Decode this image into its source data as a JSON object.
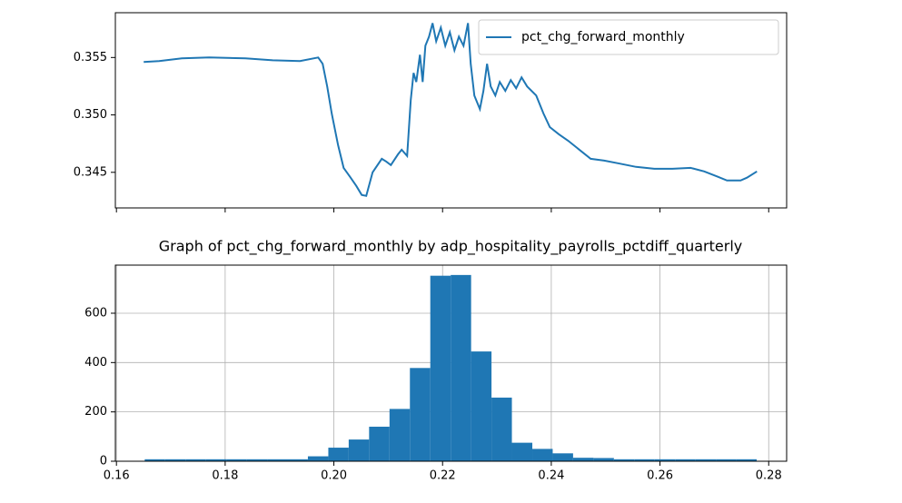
{
  "chart_data": [
    {
      "type": "line",
      "x": [
        0.16501,
        0.16786,
        0.17203,
        0.17705,
        0.18373,
        0.18875,
        0.19376,
        0.19711,
        0.19794,
        0.19878,
        0.19961,
        0.20078,
        0.20179,
        0.20296,
        0.20412,
        0.20513,
        0.20596,
        0.20713,
        0.20881,
        0.20964,
        0.21048,
        0.21181,
        0.21248,
        0.21348,
        0.21415,
        0.21466,
        0.21516,
        0.21583,
        0.21633,
        0.21683,
        0.2175,
        0.21816,
        0.21883,
        0.21967,
        0.2205,
        0.22134,
        0.22218,
        0.22301,
        0.22385,
        0.22468,
        0.22518,
        0.22585,
        0.22686,
        0.22752,
        0.22819,
        0.22886,
        0.2297,
        0.23053,
        0.23154,
        0.23254,
        0.23354,
        0.23454,
        0.23555,
        0.23722,
        0.23856,
        0.23973,
        0.2414,
        0.24307,
        0.24474,
        0.24725,
        0.24975,
        0.25226,
        0.2556,
        0.25895,
        0.26229,
        0.26563,
        0.26814,
        0.27065,
        0.27232,
        0.27483,
        0.276,
        0.27784
      ],
      "series": [
        {
          "name": "pct_chg_forward_monthly",
          "color": "#1f77b4",
          "values": [
            0.35461,
            0.35469,
            0.35492,
            0.355,
            0.35492,
            0.35476,
            0.35469,
            0.355,
            0.35445,
            0.35248,
            0.35012,
            0.34736,
            0.34539,
            0.34461,
            0.34382,
            0.34303,
            0.34295,
            0.345,
            0.34618,
            0.34594,
            0.34563,
            0.34657,
            0.34697,
            0.34642,
            0.3513,
            0.35366,
            0.35287,
            0.35524,
            0.35287,
            0.35602,
            0.35681,
            0.35799,
            0.35642,
            0.3576,
            0.35602,
            0.3572,
            0.35563,
            0.35681,
            0.35602,
            0.35799,
            0.35445,
            0.35169,
            0.35051,
            0.35209,
            0.35445,
            0.35248,
            0.35169,
            0.35287,
            0.35209,
            0.35303,
            0.35232,
            0.35327,
            0.35248,
            0.35169,
            0.35012,
            0.34894,
            0.34831,
            0.34776,
            0.34713,
            0.34618,
            0.34602,
            0.34579,
            0.34547,
            0.34531,
            0.34531,
            0.34539,
            0.34508,
            0.34461,
            0.34429,
            0.34429,
            0.34453,
            0.34508
          ]
        }
      ],
      "xlim": [
        0.1598,
        0.2833
      ],
      "xticks": [
        0.16,
        0.18,
        0.2,
        0.22,
        0.24,
        0.26,
        0.28
      ],
      "xtick_labels": false,
      "ylim": [
        0.3419,
        0.3589
      ],
      "yticks": [
        0.345,
        {
          "value": 0.35,
          "label": "0.350"
        },
        0.355
      ],
      "grid": false,
      "legend": "upper right"
    },
    {
      "type": "histogram",
      "title": "Graph of pct_chg_forward_monthly by adp_hospitality_payrolls_pctdiff_quarterly",
      "bins": [
        0.1652,
        0.16895,
        0.17271,
        0.17646,
        0.18021,
        0.18397,
        0.18772,
        0.19147,
        0.19522,
        0.19898,
        0.20273,
        0.20648,
        0.21024,
        0.21399,
        0.21774,
        0.2215,
        0.22525,
        0.229,
        0.23275,
        0.23651,
        0.24026,
        0.24401,
        0.24777,
        0.25152,
        0.25527,
        0.25903,
        0.26278,
        0.26653,
        0.27028,
        0.27404,
        0.27779
      ],
      "values": [
        8,
        8,
        8,
        8,
        8,
        8,
        8,
        8,
        20,
        55,
        88,
        140,
        212,
        378,
        752,
        755,
        445,
        258,
        75,
        50,
        32,
        14,
        13,
        8,
        8,
        8,
        8,
        8,
        8,
        8
      ],
      "color": "#1f77b4",
      "xlim": [
        0.1598,
        0.2833
      ],
      "xticks": [
        0.16,
        0.18,
        {
          "value": 0.2,
          "label": "0.20"
        },
        0.22,
        0.24,
        0.26,
        0.28
      ],
      "ylim": [
        0,
        795
      ],
      "yticks": [
        0,
        200,
        400,
        600
      ],
      "grid": true
    }
  ]
}
